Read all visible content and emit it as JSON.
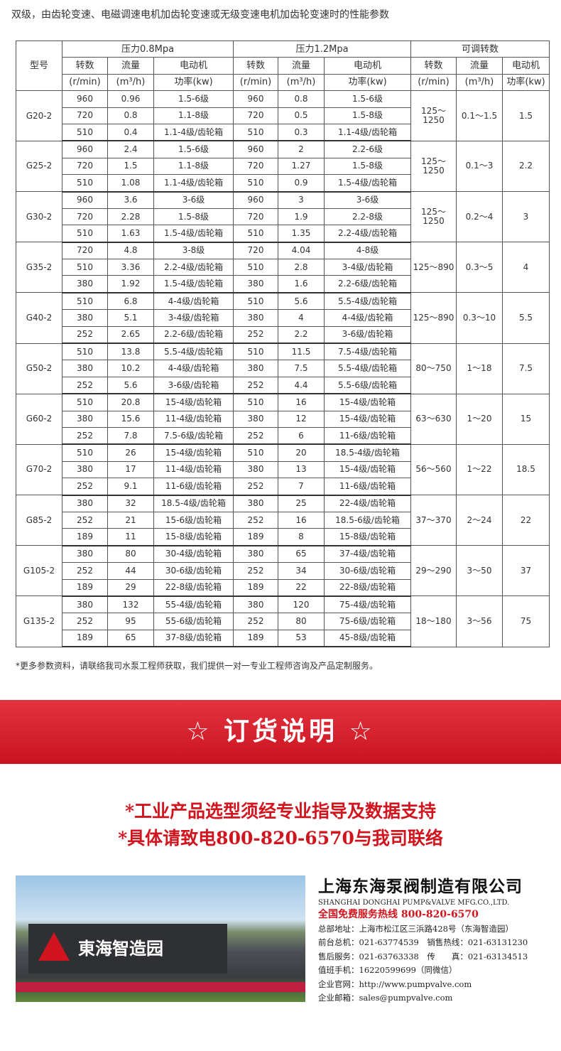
{
  "title": "双级，由齿轮变速、电磁调速电机加齿轮变速或无级变速电机加齿轮变速时的性能参数",
  "table": {
    "model_header": "型号",
    "groups": [
      "压力0.8Mpa",
      "压力1.2Mpa",
      "可调转数"
    ],
    "sub_headers": [
      "转数",
      "流量",
      "电动机",
      "转数",
      "流量",
      "电动机",
      "转数",
      "流量",
      "电动机"
    ],
    "units": [
      "(r/min)",
      "(m³/h)",
      "功率(kw)",
      "(r/min)",
      "(m³/h)",
      "功率(kw)",
      "(r/min)",
      "(m³/h)",
      "功率(kw)"
    ],
    "models": [
      {
        "name": "G20-2",
        "rows": [
          [
            "960",
            "0.96",
            "1.5-6级",
            "960",
            "0.8",
            "1.5-6级"
          ],
          [
            "720",
            "0.8",
            "1.1-8级",
            "720",
            "0.5",
            "1.5-8级"
          ],
          [
            "510",
            "0.4",
            "1.1-4级/齿轮箱",
            "510",
            "0.3",
            "1.1-4级/齿轮箱"
          ]
        ],
        "adj": [
          "125～1250",
          "0.1～1.5",
          "1.5"
        ]
      },
      {
        "name": "G25-2",
        "rows": [
          [
            "960",
            "2.4",
            "1.5-6级",
            "960",
            "2",
            "2.2-6级"
          ],
          [
            "720",
            "1.5",
            "1.1-8级",
            "720",
            "1.27",
            "1.5-8级"
          ],
          [
            "510",
            "1.08",
            "1.1-4级/齿轮箱",
            "510",
            "0.9",
            "1.5-4级/齿轮箱"
          ]
        ],
        "adj": [
          "125～1250",
          "0.1～3",
          "2.2"
        ]
      },
      {
        "name": "G30-2",
        "rows": [
          [
            "960",
            "3.6",
            "3-6级",
            "960",
            "3",
            "3-6级"
          ],
          [
            "720",
            "2.28",
            "1.5-8级",
            "720",
            "1.9",
            "2.2-8级"
          ],
          [
            "510",
            "1.63",
            "1.5-4级/齿轮箱",
            "510",
            "1.35",
            "2.2-4级/齿轮箱"
          ]
        ],
        "adj": [
          "125～1250",
          "0.2～4",
          "3"
        ]
      },
      {
        "name": "G35-2",
        "rows": [
          [
            "720",
            "4.8",
            "3-8级",
            "720",
            "4.04",
            "4-8级"
          ],
          [
            "510",
            "3.36",
            "2.2-4级/齿轮箱",
            "510",
            "2.8",
            "3-4级/齿轮箱"
          ],
          [
            "380",
            "1.92",
            "1.5-4级/齿轮箱",
            "380",
            "1.6",
            "2.2-6级/齿轮箱"
          ]
        ],
        "adj": [
          "125～890",
          "0.3～5",
          "4"
        ]
      },
      {
        "name": "G40-2",
        "rows": [
          [
            "510",
            "6.8",
            "4-4级/齿轮箱",
            "510",
            "5.6",
            "5.5-4级/齿轮箱"
          ],
          [
            "380",
            "5.1",
            "3-4级/齿轮箱",
            "380",
            "4",
            "4-4级/齿轮箱"
          ],
          [
            "252",
            "2.65",
            "2.2-6级/齿轮箱",
            "252",
            "2.2",
            "3-6级/齿轮箱"
          ]
        ],
        "adj": [
          "125～890",
          "0.3～10",
          "5.5"
        ]
      },
      {
        "name": "G50-2",
        "rows": [
          [
            "510",
            "13.8",
            "5.5-4级/齿轮箱",
            "510",
            "11.5",
            "7.5-4级/齿轮箱"
          ],
          [
            "380",
            "10.2",
            "4-4级/齿轮箱",
            "380",
            "7.5",
            "5.5-4级/齿轮箱"
          ],
          [
            "252",
            "5.6",
            "3-6级/齿轮箱",
            "252",
            "4.4",
            "5.5-6级/齿轮箱"
          ]
        ],
        "adj": [
          "80～750",
          "1～18",
          "7.5"
        ]
      },
      {
        "name": "G60-2",
        "rows": [
          [
            "510",
            "20.8",
            "15-4级/齿轮箱",
            "510",
            "16",
            "15-4级/齿轮箱"
          ],
          [
            "380",
            "15.6",
            "11-4级/齿轮箱",
            "380",
            "12",
            "15-4级/齿轮箱"
          ],
          [
            "252",
            "7.8",
            "7.5-6级/齿轮箱",
            "252",
            "6",
            "11-6级/齿轮箱"
          ]
        ],
        "adj": [
          "63～630",
          "1～20",
          "15"
        ]
      },
      {
        "name": "G70-2",
        "rows": [
          [
            "510",
            "26",
            "15-4级/齿轮箱",
            "510",
            "20",
            "18.5-4级/齿轮箱"
          ],
          [
            "380",
            "17",
            "11-4级/齿轮箱",
            "380",
            "13",
            "15-4级/齿轮箱"
          ],
          [
            "252",
            "9.1",
            "11-6级/齿轮箱",
            "252",
            "7",
            "11-6级/齿轮箱"
          ]
        ],
        "adj": [
          "56～560",
          "1～22",
          "18.5"
        ]
      },
      {
        "name": "G85-2",
        "rows": [
          [
            "380",
            "32",
            "18.5-4级/齿轮箱",
            "380",
            "25",
            "22-4级/齿轮箱"
          ],
          [
            "252",
            "21",
            "15-6级/齿轮箱",
            "252",
            "16",
            "18.5-6级/齿轮箱"
          ],
          [
            "189",
            "11",
            "15-8级/齿轮箱",
            "189",
            "8",
            "15-8级/齿轮箱"
          ]
        ],
        "adj": [
          "37～370",
          "2～24",
          "22"
        ]
      },
      {
        "name": "G105-2",
        "rows": [
          [
            "380",
            "80",
            "30-4级/齿轮箱",
            "380",
            "65",
            "37-4级/齿轮箱"
          ],
          [
            "252",
            "44",
            "30-6级/齿轮箱",
            "252",
            "34",
            "30-6级/齿轮箱"
          ],
          [
            "189",
            "29",
            "22-8级/齿轮箱",
            "189",
            "22",
            "22-8级/齿轮箱"
          ]
        ],
        "adj": [
          "29～290",
          "3～50",
          "37"
        ]
      },
      {
        "name": "G135-2",
        "rows": [
          [
            "380",
            "132",
            "55-4级/齿轮箱",
            "380",
            "120",
            "75-4级/齿轮箱"
          ],
          [
            "252",
            "95",
            "55-6级/齿轮箱",
            "252",
            "80",
            "75-6级/齿轮箱"
          ],
          [
            "189",
            "65",
            "37-8级/齿轮箱",
            "189",
            "53",
            "45-8级/齿轮箱"
          ]
        ],
        "adj": [
          "18～180",
          "3～56",
          "75"
        ]
      }
    ]
  },
  "note": "*更多参数资料，请联络我司水泵工程师获取，我们提供一对一专业工程师咨询及产品定制服务。",
  "banner": "☆ 订货说明 ☆",
  "red_lines": [
    "*工业产品选型须经专业指导及数据支持",
    "*具体请致电800-820-6570与我司联络"
  ],
  "photo_sign": "東海智造园",
  "company": {
    "name_cn": "上海东海泵阀制造有限公司",
    "name_en": "SHANGHAI DONGHAI PUMP&VALVE MFG.CO.,LTD.",
    "hotline": "全国免费服务热线 800-820-6570",
    "lines": [
      "总部地址：上海市松江区三浜路428号（东海智造园）",
      "前台总机：021-63774539　销售热线：021-63131230",
      "售后服务：021-63763338　传　　真：021-63134513",
      "值班手机：16220599699（同微信）",
      "企业官网：http://www.pumpvalve.com",
      "企业邮箱：sales@pumpvalve.com"
    ]
  },
  "colors": {
    "accent": "#d0151e"
  }
}
